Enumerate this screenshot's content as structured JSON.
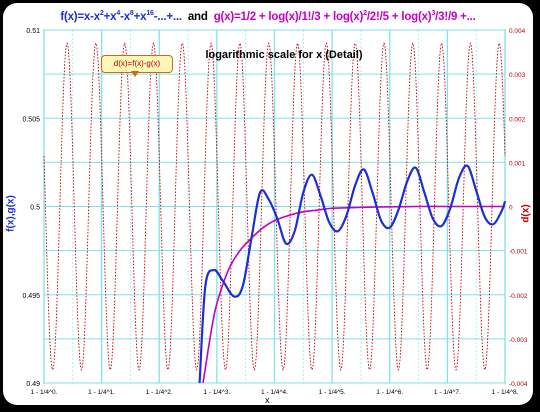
{
  "header": {
    "f_prefix": "f(x)=x-x",
    "f_exp1": "2",
    "f_plus1": "+x",
    "f_exp2": "4",
    "f_minus": "-x",
    "f_exp3": "8",
    "f_plus2": "+x",
    "f_exp4": "16",
    "f_tail": "-...+...",
    "and": "and",
    "g_prefix": "g(x)=1/2 + log(x)/1!/3 + log(x)",
    "g_exp1": "2",
    "g_mid1": "/2!/5 + log(x)",
    "g_exp2": "3",
    "g_mid2": "/3!/9 +...",
    "f_color": "#1a2fd6",
    "g_color": "#c400c4"
  },
  "subtitle": "logarithmic scale for x (Detail)",
  "callout": "d(x)=f(x)-g(x)",
  "colors": {
    "f": "#1a2fd6",
    "g": "#c400c4",
    "d": "#c00000",
    "grid": "#7fe3ea"
  },
  "chart_data": {
    "type": "line",
    "title": "logarithmic scale for x (Detail)",
    "xlabel": "x",
    "ylabel_left": "f(x),g(x)",
    "ylabel_right": "d(x)",
    "x_tick_labels": [
      "1 - 1/4^0.",
      "1 - 1/4^1.",
      "1 - 1/4^2.",
      "1 - 1/4^3.",
      "1 - 1/4^4.",
      "1 - 1/4^5.",
      "1 - 1/4^6.",
      "1 - 1/4^7.",
      "1 - 1/4^8."
    ],
    "x_range": [
      0,
      8
    ],
    "y_left_range": [
      0.49,
      0.51
    ],
    "y_left_ticks": [
      "0.49",
      "0.495",
      "0.5",
      "0.505",
      "0.51"
    ],
    "y_right_range": [
      -0.004,
      0.004
    ],
    "y_right_ticks": [
      "0.004",
      "0.003",
      "0.002",
      "0.001",
      "0",
      "-0.001",
      "-0.002",
      "-0.003",
      "-0.004"
    ],
    "grid": true,
    "series": [
      {
        "name": "f(x)",
        "axis": "left",
        "x": [
          2.7,
          2.8,
          2.95,
          3.1,
          3.3,
          3.45,
          3.6,
          3.75,
          3.9,
          4.05,
          4.2,
          4.35,
          4.5,
          4.65,
          4.8,
          4.95,
          5.1,
          5.25,
          5.4,
          5.55,
          5.7,
          5.85,
          6.0,
          6.15,
          6.3,
          6.45,
          6.6,
          6.75,
          6.9,
          7.05,
          7.2,
          7.35,
          7.5,
          7.65,
          7.8,
          7.95,
          8.0
        ],
        "y": [
          0.49,
          0.4955,
          0.4964,
          0.4958,
          0.4949,
          0.4955,
          0.4982,
          0.5008,
          0.5004,
          0.4993,
          0.4979,
          0.4986,
          0.5008,
          0.5018,
          0.5006,
          0.4991,
          0.4986,
          0.4995,
          0.5012,
          0.5021,
          0.5008,
          0.4992,
          0.4988,
          0.4998,
          0.5014,
          0.5022,
          0.5008,
          0.4993,
          0.4989,
          0.4999,
          0.5016,
          0.5023,
          0.5009,
          0.4994,
          0.499,
          0.4998,
          0.5003
        ]
      },
      {
        "name": "g(x)",
        "axis": "left",
        "x": [
          2.76,
          2.9,
          3.0,
          3.2,
          3.4,
          3.6,
          3.8,
          4.0,
          4.25,
          4.5,
          4.75,
          5.0,
          5.5,
          6.0,
          6.5,
          7.0,
          7.5,
          8.0
        ],
        "y": [
          0.49,
          0.4929,
          0.4945,
          0.4964,
          0.4975,
          0.4982,
          0.4988,
          0.4992,
          0.4995,
          0.4997,
          0.4998,
          0.4999,
          0.49995,
          0.49998,
          0.5,
          0.5,
          0.5,
          0.5
        ]
      },
      {
        "name": "d(x)",
        "axis": "right",
        "amplitude": 0.0037,
        "period": 0.5,
        "phase_peak_x": 0.4
      }
    ]
  }
}
